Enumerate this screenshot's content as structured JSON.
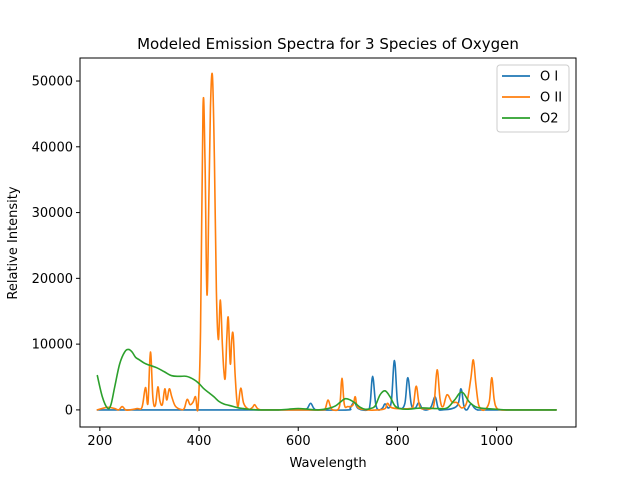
{
  "chart_data": {
    "type": "line",
    "title": "Modeled Emission Spectra for 3 Species of Oxygen",
    "xlabel": "Wavelength",
    "ylabel": "Relative Intensity",
    "xlim": [
      160,
      1160
    ],
    "ylim": [
      -2600,
      53500
    ],
    "x_ticks": [
      200,
      400,
      600,
      800,
      1000
    ],
    "y_ticks": [
      0,
      10000,
      20000,
      30000,
      40000,
      50000
    ],
    "grid": false,
    "legend_position": "top-right",
    "series": [
      {
        "name": "O I",
        "color": "#1f77b4",
        "x": [
          195,
          600,
          610,
          618,
          625,
          632,
          642,
          700,
          705,
          713,
          721,
          740,
          745,
          750,
          756,
          762,
          770,
          775,
          782,
          788,
          794,
          800,
          806,
          815,
          821,
          828,
          836,
          843,
          850,
          860,
          868,
          876,
          882,
          890,
          920,
          928,
          934,
          940,
          948,
          955,
          962,
          980,
          1120
        ],
        "y": [
          0,
          0,
          0,
          200,
          1000,
          200,
          0,
          0,
          300,
          1200,
          200,
          0,
          1000,
          5100,
          1000,
          0,
          300,
          900,
          300,
          1500,
          7500,
          1200,
          200,
          1000,
          4900,
          800,
          300,
          1100,
          200,
          0,
          500,
          2000,
          300,
          0,
          600,
          3200,
          600,
          0,
          900,
          300,
          0,
          0,
          0
        ]
      },
      {
        "name": "O II",
        "color": "#ff7f0e",
        "x": [
          195,
          215,
          230,
          238,
          245,
          252,
          260,
          275,
          285,
          292,
          297,
          302,
          307,
          312,
          317,
          321,
          326,
          331,
          335,
          340,
          345,
          352,
          362,
          370,
          376,
          382,
          388,
          393,
          398,
          403,
          408,
          412,
          416,
          420,
          423,
          427,
          431,
          435,
          439,
          443,
          447,
          450,
          453,
          456,
          459,
          463,
          466,
          469,
          473,
          478,
          484,
          490,
          500,
          508,
          512,
          518,
          525,
          545,
          600,
          650,
          655,
          660,
          665,
          670,
          683,
          688,
          693,
          700,
          710,
          715,
          720,
          740,
          760,
          775,
          780,
          790,
          825,
          832,
          838,
          845,
          858,
          868,
          874,
          880,
          886,
          892,
          900,
          910,
          920,
          930,
          940,
          948,
          953,
          958,
          963,
          968,
          975,
          985,
          990,
          995,
          1000,
          1010,
          1030,
          1120
        ],
        "y": [
          0,
          400,
          200,
          0,
          500,
          0,
          0,
          200,
          400,
          3400,
          1000,
          8800,
          1800,
          700,
          3500,
          1400,
          800,
          3200,
          1500,
          3200,
          2000,
          600,
          100,
          200,
          1600,
          800,
          1200,
          2000,
          400,
          12000,
          46000,
          38000,
          17500,
          33000,
          46000,
          50800,
          38000,
          18000,
          10700,
          16700,
          10000,
          6000,
          5000,
          11000,
          14000,
          7000,
          10800,
          11300,
          5000,
          500,
          3300,
          1000,
          100,
          400,
          800,
          200,
          0,
          0,
          0,
          0,
          300,
          1500,
          500,
          0,
          500,
          4800,
          800,
          500,
          700,
          2000,
          400,
          0,
          0,
          200,
          1000,
          300,
          200,
          700,
          3600,
          500,
          200,
          200,
          1000,
          6100,
          1600,
          500,
          2300,
          1200,
          1100,
          300,
          1200,
          4800,
          7600,
          4000,
          1000,
          200,
          0,
          1200,
          4900,
          1600,
          300,
          0,
          0,
          0
        ],
        "x_display_step": 1
      },
      {
        "name": "O2",
        "color": "#2ca02c",
        "x": [
          195,
          205,
          215,
          222,
          230,
          240,
          250,
          258,
          265,
          272,
          280,
          290,
          300,
          315,
          330,
          345,
          360,
          375,
          390,
          400,
          410,
          420,
          430,
          440,
          450,
          460,
          470,
          480,
          490,
          500,
          520,
          540,
          560,
          580,
          600,
          620,
          640,
          660,
          675,
          685,
          695,
          705,
          715,
          725,
          735,
          745,
          755,
          765,
          775,
          785,
          795,
          805,
          820,
          850,
          880,
          900,
          915,
          930,
          945,
          960,
          980,
          1000,
          1020,
          1050,
          1120
        ],
        "y": [
          5200,
          2000,
          300,
          700,
          3500,
          7000,
          8800,
          9200,
          8800,
          8000,
          7600,
          7100,
          6800,
          6400,
          5800,
          5200,
          5100,
          5100,
          4600,
          4000,
          3200,
          2600,
          2000,
          1300,
          900,
          700,
          500,
          300,
          200,
          100,
          0,
          0,
          0,
          100,
          200,
          100,
          0,
          200,
          600,
          1200,
          1700,
          1500,
          1000,
          400,
          100,
          200,
          600,
          2300,
          2900,
          2000,
          600,
          200,
          100,
          300,
          200,
          300,
          1500,
          2700,
          1200,
          400,
          200,
          100,
          0,
          0,
          0
        ]
      }
    ]
  }
}
